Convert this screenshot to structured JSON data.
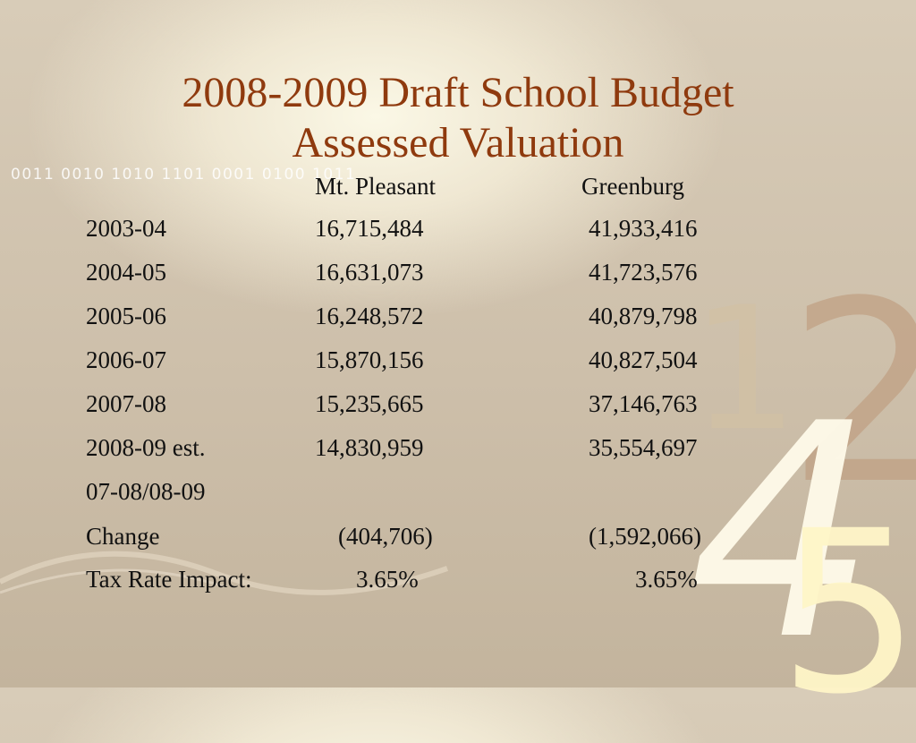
{
  "title_line1": "2008-2009 Draft School Budget",
  "title_line2": "Assessed Valuation",
  "binary_text": "0011 0010 1010 1101 0001 0100 1011",
  "deco_digits": [
    "1",
    "2",
    "4",
    "5"
  ],
  "columns": [
    "Mt. Pleasant",
    "Greenburg"
  ],
  "rows": [
    {
      "year": "2003-04",
      "mt_pleasant": "16,715,484",
      "greenburg": "41,933,416"
    },
    {
      "year": "2004-05",
      "mt_pleasant": "16,631,073",
      "greenburg": "41,723,576"
    },
    {
      "year": "2005-06",
      "mt_pleasant": "16,248,572",
      "greenburg": "40,879,798"
    },
    {
      "year": "2006-07",
      "mt_pleasant": "15,870,156",
      "greenburg": "40,827,504"
    },
    {
      "year": "2007-08",
      "mt_pleasant": "15,235,665",
      "greenburg": "37,146,763"
    },
    {
      "year": "2008-09 est.",
      "mt_pleasant": "14,830,959",
      "greenburg": "35,554,697"
    }
  ],
  "change_period": "07-08/08-09",
  "change": {
    "label": "Change",
    "mt_pleasant": "(404,706)",
    "greenburg": "(1,592,066)"
  },
  "tax_impact": {
    "label": "Tax Rate Impact:",
    "mt_pleasant": "3.65%",
    "greenburg": "3.65%"
  },
  "colors": {
    "title": "#8f3a0e",
    "text": "#111111",
    "background": "#d8ccb8"
  }
}
